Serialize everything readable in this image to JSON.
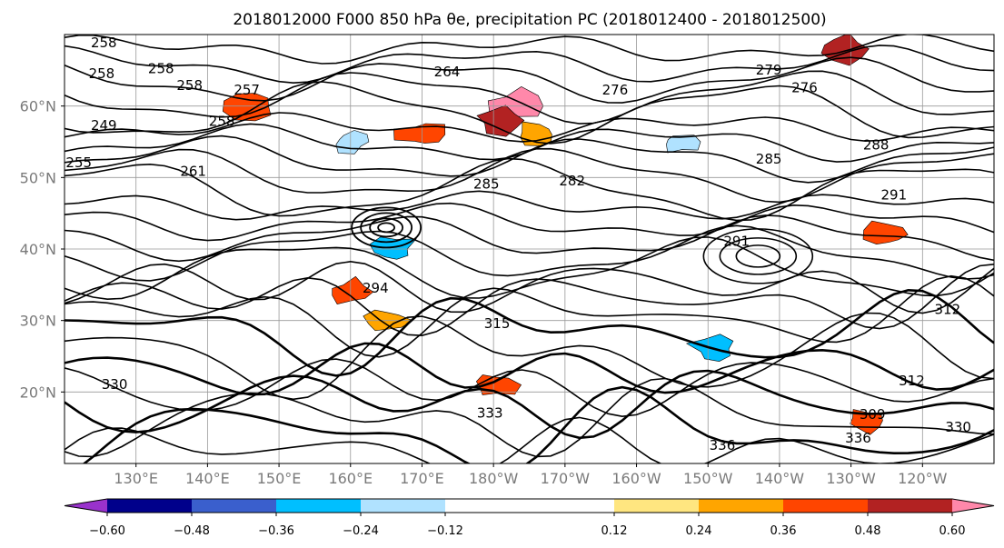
{
  "chart_data": {
    "type": "heatmap",
    "title": "2018012000 F000 850 hPa θe, precipitation PC (2018012400 - 2018012500)",
    "map_extent": {
      "lon": [
        120,
        250
      ],
      "lat": [
        10,
        70
      ]
    },
    "grid": true,
    "x_ticks": [
      "130°E",
      "140°E",
      "150°E",
      "160°E",
      "170°E",
      "180°W",
      "170°W",
      "160°W",
      "150°W",
      "140°W",
      "130°W",
      "120°W"
    ],
    "x_tick_values": [
      130,
      140,
      150,
      160,
      170,
      180,
      190,
      200,
      210,
      220,
      230,
      240
    ],
    "y_ticks": [
      "20°N",
      "30°N",
      "40°N",
      "50°N",
      "60°N"
    ],
    "y_tick_values": [
      20,
      30,
      40,
      50,
      60
    ],
    "colorbar": {
      "boundaries": [
        -0.72,
        -0.6,
        -0.48,
        -0.36,
        -0.24,
        -0.12,
        0.12,
        0.24,
        0.36,
        0.48,
        0.6,
        0.72
      ],
      "tick_labels": [
        "−0.60",
        "−0.48",
        "−0.36",
        "−0.24",
        "−0.12",
        "0.12",
        "0.24",
        "0.36",
        "0.48",
        "0.60"
      ],
      "tick_values": [
        -0.6,
        -0.48,
        -0.36,
        -0.24,
        -0.12,
        0.12,
        0.24,
        0.36,
        0.48,
        0.6
      ],
      "colors": [
        "#9932cc",
        "#00008b",
        "#3a5fcd",
        "#00bfff",
        "#b0e2ff",
        "#ffffff",
        "#ffe680",
        "#ffa500",
        "#ff4500",
        "#b22222",
        "#ff88aa"
      ],
      "extend": "both"
    },
    "contour_labels": [
      {
        "text": "258",
        "lon": 125.5,
        "lat": 68.8
      },
      {
        "text": "258",
        "lon": 125.2,
        "lat": 64.5
      },
      {
        "text": "258",
        "lon": 133.5,
        "lat": 65.2
      },
      {
        "text": "258",
        "lon": 137.5,
        "lat": 62.8
      },
      {
        "text": "257",
        "lon": 145.5,
        "lat": 62.2
      },
      {
        "text": "258",
        "lon": 142.0,
        "lat": 57.8
      },
      {
        "text": "249",
        "lon": 125.5,
        "lat": 57.2
      },
      {
        "text": "255",
        "lon": 122.0,
        "lat": 52.0
      },
      {
        "text": "261",
        "lon": 138.0,
        "lat": 50.8
      },
      {
        "text": "264",
        "lon": 173.5,
        "lat": 64.7
      },
      {
        "text": "276",
        "lon": 197.0,
        "lat": 62.2
      },
      {
        "text": "279",
        "lon": 218.5,
        "lat": 65.0
      },
      {
        "text": "276",
        "lon": 223.5,
        "lat": 62.5
      },
      {
        "text": "285",
        "lon": 179.0,
        "lat": 49.0
      },
      {
        "text": "282",
        "lon": 191.0,
        "lat": 49.5
      },
      {
        "text": "285",
        "lon": 218.5,
        "lat": 52.5
      },
      {
        "text": "288",
        "lon": 233.5,
        "lat": 54.5
      },
      {
        "text": "291",
        "lon": 236.0,
        "lat": 47.5
      },
      {
        "text": "291",
        "lon": 214.0,
        "lat": 41.0
      },
      {
        "text": "312",
        "lon": 243.5,
        "lat": 31.5
      },
      {
        "text": "312",
        "lon": 238.5,
        "lat": 21.5
      },
      {
        "text": "309",
        "lon": 233.0,
        "lat": 16.8
      },
      {
        "text": "336",
        "lon": 212.0,
        "lat": 12.5
      },
      {
        "text": "336",
        "lon": 231.0,
        "lat": 13.5
      },
      {
        "text": "330",
        "lon": 245.0,
        "lat": 15.0
      },
      {
        "text": "333",
        "lon": 179.5,
        "lat": 17.0
      },
      {
        "text": "330",
        "lon": 127.0,
        "lat": 21.0
      },
      {
        "text": "315",
        "lon": 180.5,
        "lat": 29.5
      },
      {
        "text": "294",
        "lon": 163.5,
        "lat": 34.5
      }
    ],
    "precip_pc_highlights": [
      {
        "lon": 183,
        "lat": 60,
        "value": 0.6
      },
      {
        "lon": 181,
        "lat": 58,
        "value": 0.48
      },
      {
        "lon": 170,
        "lat": 56,
        "value": 0.36
      },
      {
        "lon": 186,
        "lat": 56,
        "value": 0.3
      },
      {
        "lon": 160,
        "lat": 34,
        "value": 0.36
      },
      {
        "lon": 165,
        "lat": 30,
        "value": 0.3
      },
      {
        "lon": 235,
        "lat": 42,
        "value": 0.36
      },
      {
        "lon": 229,
        "lat": 68,
        "value": 0.48
      },
      {
        "lon": 146,
        "lat": 60,
        "value": 0.36
      },
      {
        "lon": 166,
        "lat": 40,
        "value": -0.36
      },
      {
        "lon": 211,
        "lat": 26,
        "value": -0.36
      },
      {
        "lon": 160,
        "lat": 55,
        "value": -0.24
      },
      {
        "lon": 206,
        "lat": 55,
        "value": -0.24
      },
      {
        "lon": 180,
        "lat": 21,
        "value": 0.36
      },
      {
        "lon": 232,
        "lat": 16,
        "value": 0.36
      }
    ]
  }
}
